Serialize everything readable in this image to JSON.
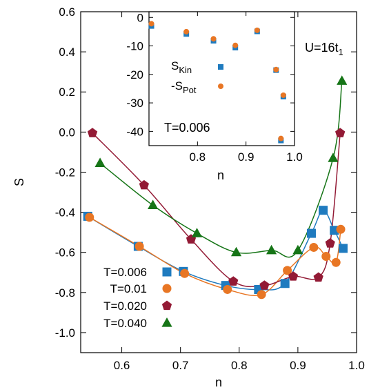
{
  "chart_data": [
    {
      "type": "scatter",
      "title": "",
      "xlabel": "n",
      "ylabel": "S",
      "xlim": [
        0.53,
        1.0
      ],
      "ylim": [
        -1.1,
        0.6
      ],
      "xticks": [
        "0.6",
        "0.7",
        "0.8",
        "0.9",
        "1.0"
      ],
      "xtick_values": [
        0.6,
        0.7,
        0.8,
        0.9,
        1.0
      ],
      "yticks": [
        "0.6",
        "0.4",
        "0.2",
        "0.0",
        "-0.2",
        "-0.4",
        "-0.6",
        "-0.8",
        "-1.0"
      ],
      "ytick_values": [
        0.6,
        0.4,
        0.2,
        0.0,
        -0.2,
        -0.4,
        -0.6,
        -0.8,
        -1.0
      ],
      "annotation": "U=16t",
      "annotation_sub": "1",
      "legend_position": "bottom-left",
      "series": [
        {
          "name": "T=0.006",
          "marker": "square",
          "color": "#1f7bbf",
          "x": [
            0.542,
            0.628,
            0.705,
            0.777,
            0.833,
            0.878,
            0.923,
            0.943,
            0.962,
            0.977
          ],
          "y": [
            -0.42,
            -0.57,
            -0.695,
            -0.765,
            -0.785,
            -0.755,
            -0.505,
            -0.39,
            -0.49,
            -0.58
          ]
        },
        {
          "name": "T=0.01",
          "marker": "circle",
          "color": "#e87624",
          "x": [
            0.545,
            0.63,
            0.707,
            0.78,
            0.838,
            0.882,
            0.927,
            0.948,
            0.965,
            0.973
          ],
          "y": [
            -0.425,
            -0.57,
            -0.705,
            -0.785,
            -0.81,
            -0.69,
            -0.575,
            -0.62,
            -0.65,
            -0.485
          ]
        },
        {
          "name": "T=0.020",
          "marker": "pentagon",
          "color": "#931a35",
          "x": [
            0.55,
            0.638,
            0.718,
            0.79,
            0.843,
            0.892,
            0.935,
            0.955,
            0.972
          ],
          "y": [
            -0.005,
            -0.265,
            -0.535,
            -0.745,
            -0.765,
            -0.72,
            -0.725,
            -0.555,
            -0.005
          ]
        },
        {
          "name": "T=0.040",
          "marker": "triangle",
          "color": "#167517",
          "x": [
            0.563,
            0.653,
            0.728,
            0.795,
            0.855,
            0.9,
            0.96,
            0.975
          ],
          "y": [
            -0.155,
            -0.365,
            -0.505,
            -0.6,
            -0.59,
            -0.59,
            -0.13,
            0.255
          ]
        }
      ]
    },
    {
      "type": "scatter",
      "title": "",
      "xlabel": "n",
      "ylabel": "",
      "xlim": [
        0.7,
        1.0
      ],
      "ylim": [
        -45,
        2
      ],
      "xticks": [
        "0.8",
        "0.9",
        "1.0"
      ],
      "xtick_values": [
        0.8,
        0.9,
        1.0
      ],
      "yticks": [
        "0",
        "-10",
        "-20",
        "-30",
        "-40"
      ],
      "ytick_values": [
        0,
        -10,
        -20,
        -30,
        -40
      ],
      "temperature_label": "T=0.006",
      "legend_position": "center",
      "series": [
        {
          "name": "S",
          "name_sub": "Kin",
          "marker": "square",
          "color": "#1f7bbf",
          "x": [
            0.705,
            0.777,
            0.833,
            0.878,
            0.923,
            0.962,
            0.977,
            0.972
          ],
          "y": [
            -3,
            -5.8,
            -8.2,
            -10.6,
            -4.9,
            -18.5,
            -27.8,
            -43.2
          ]
        },
        {
          "name": "-S",
          "name_sub": "Pot",
          "marker": "circle",
          "color": "#e87624",
          "x": [
            0.705,
            0.777,
            0.833,
            0.878,
            0.923,
            0.962,
            0.977,
            0.972
          ],
          "y": [
            -2.2,
            -5.0,
            -7.5,
            -9.8,
            -4.5,
            -18.3,
            -27.3,
            -42.5
          ]
        }
      ],
      "legend_markers": [
        "square",
        "circle"
      ]
    }
  ],
  "legend_icons": {
    "square": "square-marker-icon",
    "circle": "circle-marker-icon",
    "pentagon": "pentagon-marker-icon",
    "triangle": "triangle-marker-icon"
  }
}
